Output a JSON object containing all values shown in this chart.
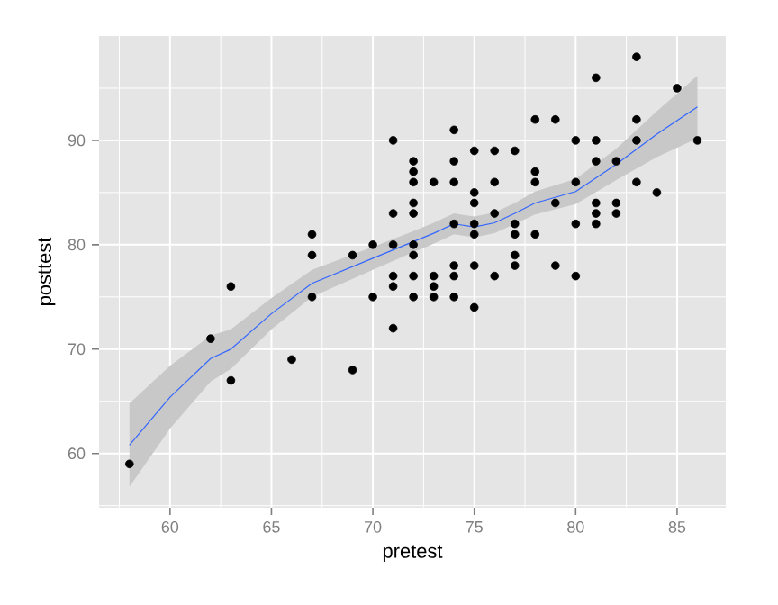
{
  "chart_data": {
    "type": "scatter",
    "xlabel": "pretest",
    "ylabel": "posttest",
    "xlim": [
      56.5,
      87.4
    ],
    "ylim": [
      54.8,
      100
    ],
    "xticks": [
      60,
      65,
      70,
      75,
      80,
      85
    ],
    "yticks": [
      60,
      70,
      80,
      90
    ],
    "grid": true,
    "series": [
      {
        "color": "#000000",
        "marker": "circle",
        "x": [
          58,
          62,
          63,
          63,
          66,
          67,
          67,
          67,
          69,
          69,
          70,
          70,
          71,
          71,
          71,
          71,
          71,
          71,
          72,
          72,
          72,
          72,
          72,
          72,
          72,
          72,
          72,
          73,
          73,
          73,
          73,
          74,
          74,
          74,
          74,
          74,
          74,
          74,
          75,
          75,
          75,
          75,
          75,
          75,
          75,
          76,
          76,
          76,
          76,
          77,
          77,
          77,
          77,
          77,
          78,
          78,
          78,
          78,
          79,
          79,
          79,
          80,
          80,
          80,
          80,
          81,
          81,
          81,
          81,
          81,
          81,
          82,
          82,
          82,
          83,
          83,
          83,
          83,
          84,
          85,
          86
        ],
        "values": [
          59,
          71,
          76,
          67,
          69,
          81,
          79,
          75,
          79,
          68,
          80,
          75,
          90,
          83,
          80,
          77,
          76,
          72,
          88,
          87,
          86,
          84,
          83,
          80,
          79,
          77,
          75,
          86,
          77,
          76,
          75,
          91,
          88,
          86,
          82,
          78,
          77,
          75,
          89,
          85,
          84,
          82,
          81,
          78,
          74,
          89,
          86,
          83,
          77,
          89,
          82,
          81,
          79,
          78,
          92,
          87,
          86,
          81,
          92,
          84,
          78,
          90,
          86,
          82,
          77,
          96,
          90,
          88,
          84,
          83,
          82,
          88,
          84,
          83,
          98,
          92,
          90,
          86,
          85,
          95,
          90
        ]
      },
      {
        "type": "line",
        "color": "#3366ff",
        "line_style": "solid",
        "marker": "none",
        "x": [
          58,
          60,
          62,
          63,
          65,
          67,
          70,
          72,
          73,
          74,
          75,
          76,
          77,
          78,
          80,
          82,
          84,
          86
        ],
        "values": [
          60.8,
          65.4,
          69.1,
          70.0,
          73.4,
          76.3,
          78.7,
          80.3,
          81.1,
          82.0,
          81.7,
          82.1,
          83.0,
          84.0,
          85.1,
          87.7,
          90.6,
          93.2
        ],
        "lower": [
          56.8,
          62.4,
          66.9,
          68.1,
          71.9,
          75.0,
          77.6,
          79.3,
          80.1,
          81.0,
          80.7,
          81.1,
          82.0,
          82.9,
          83.9,
          86.2,
          88.4,
          90.2
        ],
        "upper": [
          64.8,
          68.4,
          71.3,
          71.9,
          74.9,
          77.6,
          79.8,
          81.3,
          82.1,
          83.0,
          82.7,
          83.1,
          84.0,
          85.1,
          86.3,
          89.2,
          92.8,
          96.2
        ]
      }
    ]
  }
}
